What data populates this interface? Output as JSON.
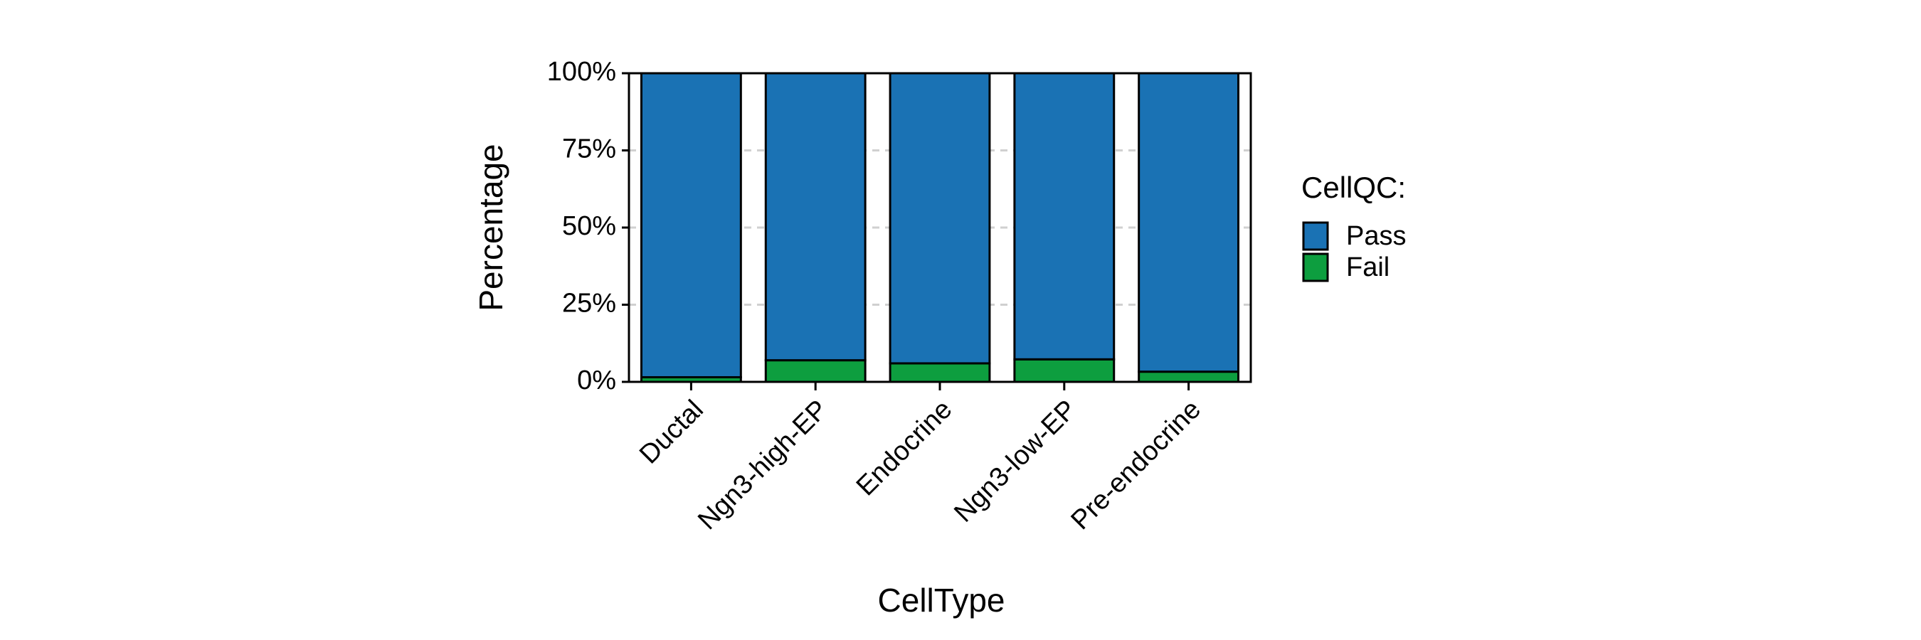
{
  "chart_data": {
    "type": "stacked_bar",
    "x_label": "CellType",
    "y_label": "Percentage",
    "categories": [
      "Ductal",
      "Ngn3-high-EP",
      "Endocrine",
      "Ngn3-low-EP",
      "Pre-endocrine"
    ],
    "legend_title": "CellQC:",
    "series": [
      {
        "name": "Pass",
        "color": "#1a72b4",
        "values": [
          98.5,
          93,
          94,
          92.7,
          96.7
        ]
      },
      {
        "name": "Fail",
        "color": "#0d9e3f",
        "values": [
          1.5,
          7,
          6,
          7.3,
          3.3
        ]
      }
    ],
    "ylim": [
      0,
      100
    ],
    "yticks": [
      {
        "value": 0,
        "label": "0%"
      },
      {
        "value": 25,
        "label": "25%"
      },
      {
        "value": 50,
        "label": "50%"
      },
      {
        "value": 75,
        "label": "75%"
      },
      {
        "value": 100,
        "label": "100%"
      }
    ],
    "grid": true,
    "legend_position": "right"
  }
}
